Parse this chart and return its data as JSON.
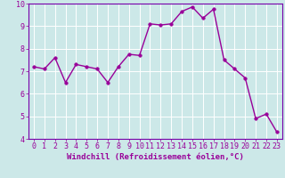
{
  "x": [
    0,
    1,
    2,
    3,
    4,
    5,
    6,
    7,
    8,
    9,
    10,
    11,
    12,
    13,
    14,
    15,
    16,
    17,
    18,
    19,
    20,
    21,
    22,
    23
  ],
  "y": [
    7.2,
    7.1,
    7.6,
    6.5,
    7.3,
    7.2,
    7.1,
    6.5,
    7.2,
    7.75,
    7.7,
    9.1,
    9.05,
    9.1,
    9.65,
    9.85,
    9.35,
    9.75,
    7.5,
    7.1,
    6.7,
    4.9,
    5.1,
    4.3
  ],
  "line_color": "#990099",
  "marker_color": "#990099",
  "bg_color": "#cce8e8",
  "grid_color": "#b0d8d8",
  "xlabel": "Windchill (Refroidissement éolien,°C)",
  "ylim": [
    4,
    10
  ],
  "xlim_min": -0.5,
  "xlim_max": 23.5,
  "yticks": [
    4,
    5,
    6,
    7,
    8,
    9,
    10
  ],
  "xticks": [
    0,
    1,
    2,
    3,
    4,
    5,
    6,
    7,
    8,
    9,
    10,
    11,
    12,
    13,
    14,
    15,
    16,
    17,
    18,
    19,
    20,
    21,
    22,
    23
  ],
  "xlabel_fontsize": 6.5,
  "tick_fontsize": 6,
  "line_width": 1.0,
  "marker_size": 2.5,
  "spine_color": "#7700aa"
}
